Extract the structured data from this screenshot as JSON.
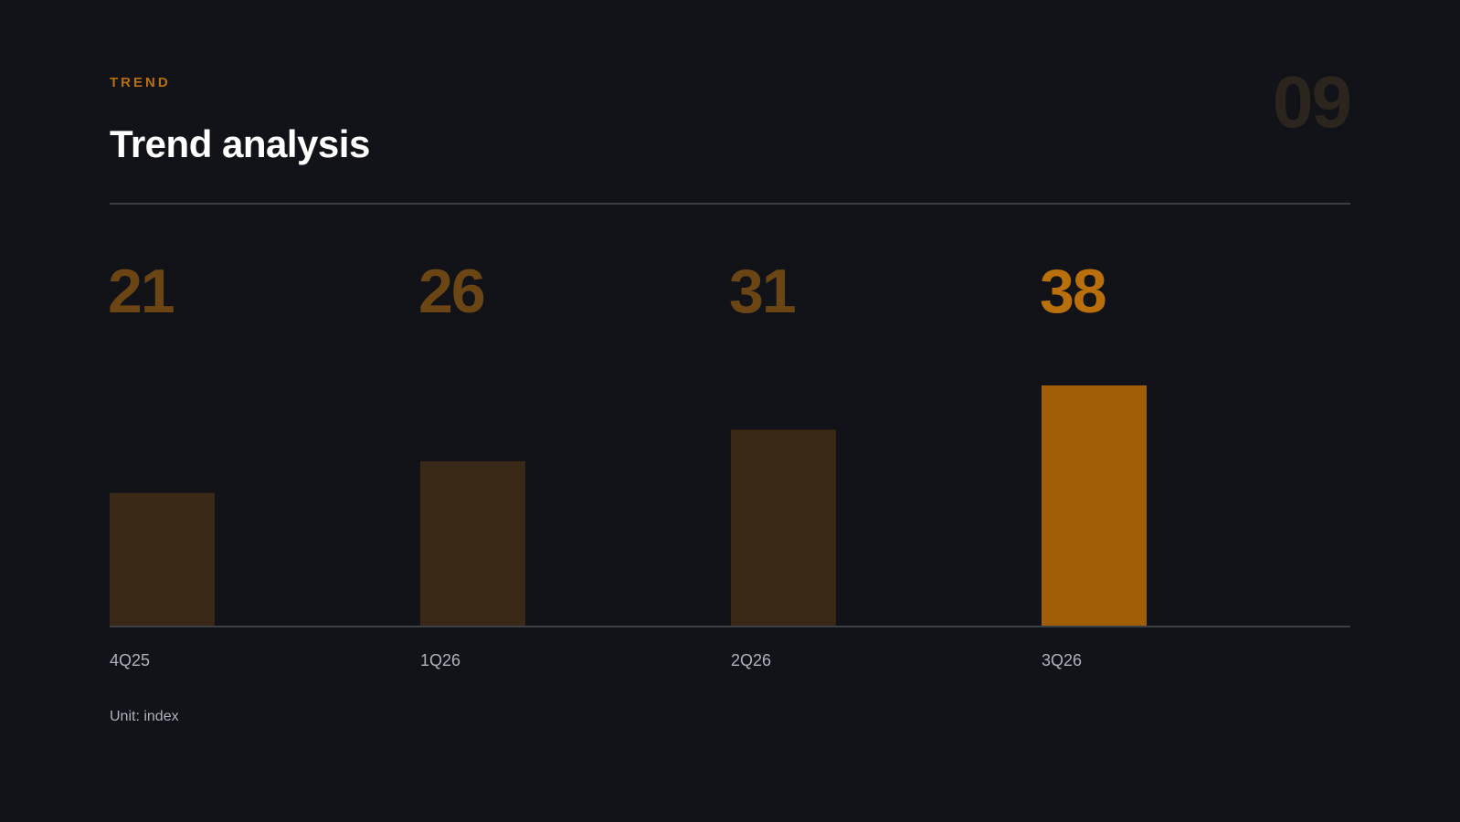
{
  "header": {
    "eyebrow": "TREND",
    "title": "Trend analysis",
    "page_number": "09"
  },
  "footer": {
    "unit_note": "Unit: index"
  },
  "colors": {
    "background": "#111318",
    "accent": "#a05f07",
    "muted_bar": "#3a2917",
    "accent_label": "#b86f0c",
    "muted_label": "#6b4513"
  },
  "chart_data": {
    "type": "bar",
    "categories": [
      "4Q25",
      "1Q26",
      "2Q26",
      "3Q26"
    ],
    "values": [
      21,
      26,
      31,
      38
    ],
    "highlight_index": 3,
    "title": "",
    "xlabel": "",
    "ylabel": "",
    "ylim": [
      0,
      38
    ],
    "grid": false
  }
}
